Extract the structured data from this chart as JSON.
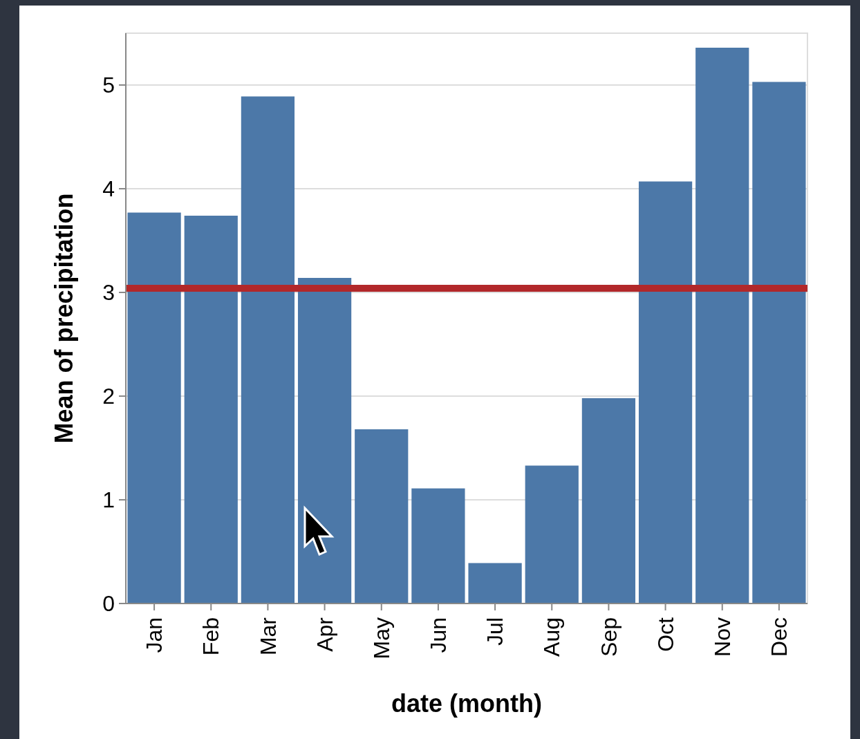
{
  "chart_data": {
    "type": "bar",
    "xlabel": "date (month)",
    "ylabel": "Mean of precipitation",
    "categories": [
      "Jan",
      "Feb",
      "Mar",
      "Apr",
      "May",
      "Jun",
      "Jul",
      "Aug",
      "Sep",
      "Oct",
      "Nov",
      "Dec"
    ],
    "values": [
      3.77,
      3.74,
      4.89,
      3.14,
      1.68,
      1.11,
      0.39,
      1.33,
      1.98,
      4.07,
      5.36,
      5.03
    ],
    "color": "#4c78a8",
    "ylim": [
      0,
      5.5
    ],
    "yticks": [
      0,
      1,
      2,
      3,
      4,
      5
    ],
    "grid": "y",
    "ref_lines": [
      {
        "axis": "y",
        "value": 3.04,
        "color": "#b2282a"
      }
    ]
  }
}
